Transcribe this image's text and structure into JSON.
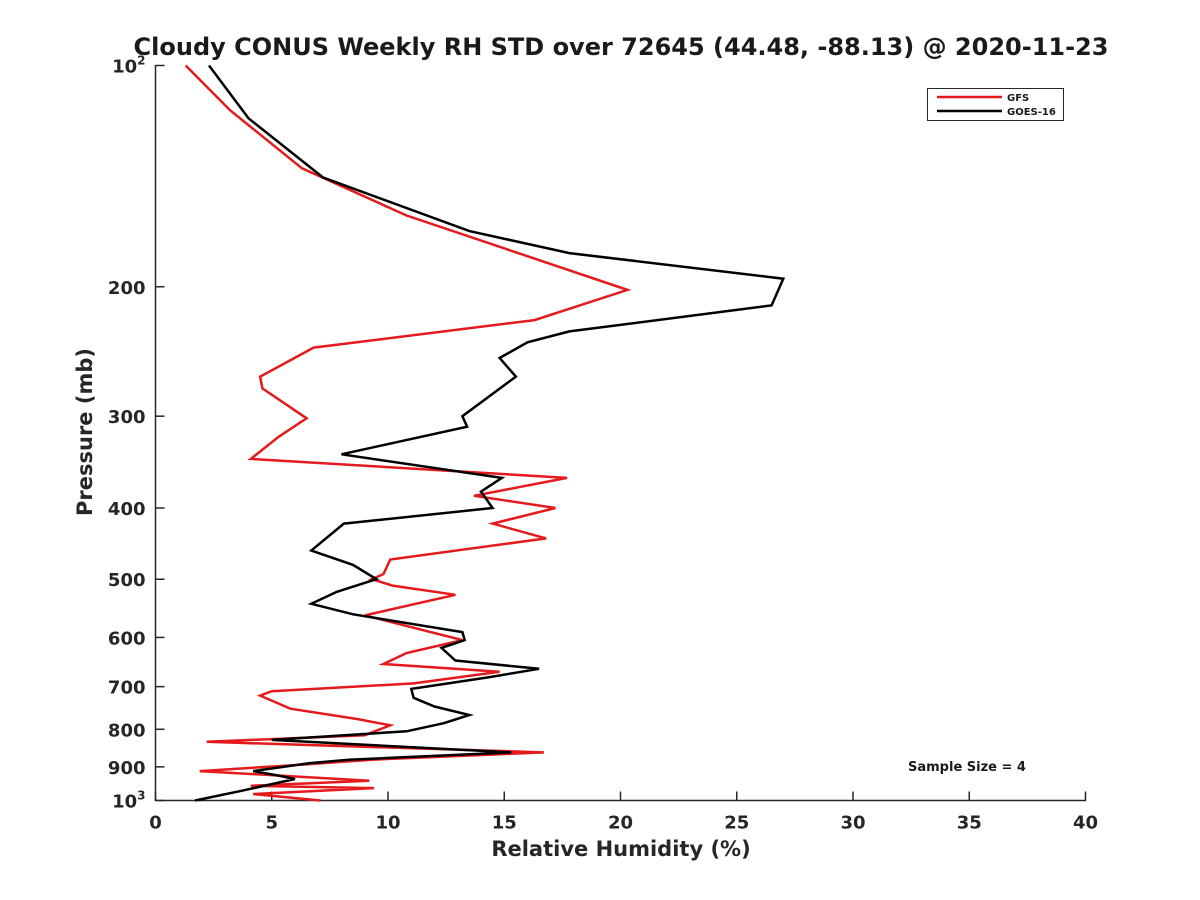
{
  "chart_data": {
    "type": "line",
    "title": "Cloudy CONUS Weekly RH STD over 72645 (44.48, -88.13) @ 2020-11-23",
    "xlabel": "Relative Humidity (%)",
    "ylabel": "Pressure (mb)",
    "xlim": [
      0,
      40
    ],
    "ylim": [
      100,
      1000
    ],
    "yscale": "log",
    "y_reversed": true,
    "x_ticks": [
      "0",
      "5",
      "10",
      "15",
      "20",
      "25",
      "30",
      "35",
      "40"
    ],
    "y_ticks": [
      {
        "value": 100,
        "label": "10",
        "sup": "2"
      },
      {
        "value": 200,
        "label": "200",
        "sup": ""
      },
      {
        "value": 300,
        "label": "300",
        "sup": ""
      },
      {
        "value": 400,
        "label": "400",
        "sup": ""
      },
      {
        "value": 500,
        "label": "500",
        "sup": ""
      },
      {
        "value": 600,
        "label": "600",
        "sup": ""
      },
      {
        "value": 700,
        "label": "700",
        "sup": ""
      },
      {
        "value": 800,
        "label": "800",
        "sup": ""
      },
      {
        "value": 900,
        "label": "900",
        "sup": ""
      },
      {
        "value": 1000,
        "label": "10",
        "sup": "3"
      }
    ],
    "legend_position": "top-right",
    "annotation": "Sample Size = 4",
    "series": [
      {
        "name": "GFS",
        "color": "#e41a1c",
        "points": [
          [
            1.3,
            100
          ],
          [
            3.2,
            115
          ],
          [
            6.3,
            138
          ],
          [
            10.8,
            160
          ],
          [
            20.3,
            202
          ],
          [
            16.3,
            222
          ],
          [
            6.8,
            242
          ],
          [
            4.5,
            265
          ],
          [
            4.6,
            275
          ],
          [
            6.5,
            302
          ],
          [
            5.3,
            320
          ],
          [
            4.1,
            343
          ],
          [
            17.7,
            364
          ],
          [
            13.7,
            385
          ],
          [
            17.2,
            400
          ],
          [
            14.5,
            420
          ],
          [
            16.8,
            440
          ],
          [
            10.1,
            470
          ],
          [
            9.8,
            492
          ],
          [
            9.3,
            500
          ],
          [
            10.2,
            510
          ],
          [
            12.9,
            525
          ],
          [
            9,
            560
          ],
          [
            13.2,
            605
          ],
          [
            10.8,
            630
          ],
          [
            9.8,
            652
          ],
          [
            14.8,
            668
          ],
          [
            11.1,
            693
          ],
          [
            5,
            710
          ],
          [
            4.5,
            720
          ],
          [
            5.8,
            750
          ],
          [
            8.7,
            775
          ],
          [
            10.1,
            790
          ],
          [
            9,
            815
          ],
          [
            2.2,
            832
          ],
          [
            16.7,
            860
          ],
          [
            9.3,
            880
          ],
          [
            6,
            895
          ],
          [
            1.9,
            912
          ],
          [
            9.2,
            940
          ],
          [
            4.1,
            955
          ],
          [
            9.4,
            962
          ],
          [
            4.2,
            980
          ],
          [
            7.1,
            1000
          ]
        ]
      },
      {
        "name": "GOES-16",
        "color": "#000000",
        "points": [
          [
            2.3,
            100
          ],
          [
            4,
            118
          ],
          [
            7.2,
            142
          ],
          [
            13.5,
            168
          ],
          [
            17.8,
            180
          ],
          [
            27,
            195
          ],
          [
            26.5,
            212
          ],
          [
            17.8,
            230
          ],
          [
            16,
            238
          ],
          [
            14.8,
            250
          ],
          [
            15.5,
            265
          ],
          [
            13.2,
            300
          ],
          [
            13.4,
            310
          ],
          [
            8,
            338
          ],
          [
            14.9,
            364
          ],
          [
            14,
            380
          ],
          [
            14.5,
            400
          ],
          [
            8.1,
            420
          ],
          [
            6.7,
            457
          ],
          [
            8.5,
            478
          ],
          [
            9.5,
            500
          ],
          [
            7.8,
            520
          ],
          [
            6.7,
            540
          ],
          [
            8.5,
            558
          ],
          [
            13.2,
            590
          ],
          [
            13.3,
            605
          ],
          [
            12.3,
            620
          ],
          [
            12.9,
            645
          ],
          [
            16.5,
            662
          ],
          [
            14.3,
            680
          ],
          [
            11,
            705
          ],
          [
            11.1,
            725
          ],
          [
            12,
            745
          ],
          [
            13.5,
            765
          ],
          [
            12.4,
            785
          ],
          [
            10.8,
            805
          ],
          [
            5,
            827
          ],
          [
            15.3,
            860
          ],
          [
            8.3,
            880
          ],
          [
            6.6,
            890
          ],
          [
            4.2,
            912
          ],
          [
            5.3,
            925
          ],
          [
            6,
            935
          ],
          [
            3.7,
            970
          ],
          [
            1.7,
            1000
          ]
        ]
      }
    ]
  }
}
